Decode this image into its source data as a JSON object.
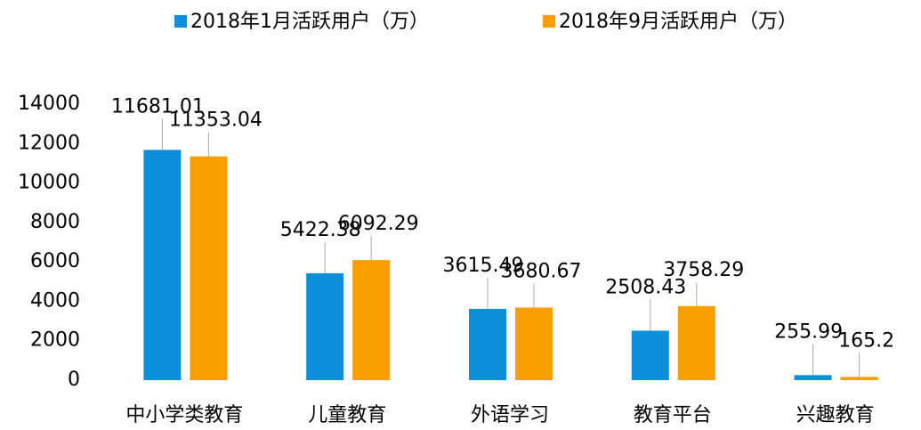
{
  "chart_data": {
    "type": "bar",
    "categories": [
      "中小学类教育",
      "儿童教育",
      "外语学习",
      "教育平台",
      "兴趣教育"
    ],
    "series": [
      {
        "name": "2018年1月活跃用户（万）",
        "color": "#0b8fdb",
        "values": [
          11681.01,
          5422.38,
          3615.49,
          2508.43,
          255.99
        ]
      },
      {
        "name": "2018年9月活跃用户（万）",
        "color": "#fb9f00",
        "values": [
          11353.04,
          6092.29,
          3680.67,
          3758.29,
          165.2
        ]
      }
    ],
    "ylim": [
      0,
      14000
    ],
    "yticks": [
      0,
      2000,
      4000,
      6000,
      8000,
      10000,
      12000,
      14000
    ],
    "grid": false,
    "legend": "top"
  }
}
